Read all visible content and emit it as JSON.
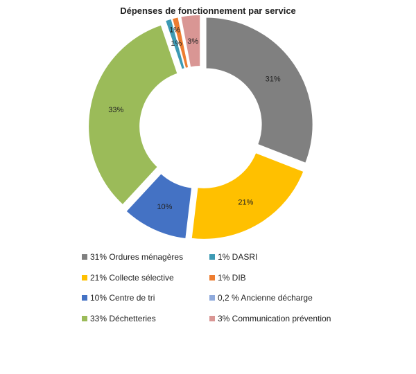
{
  "chart_data": {
    "type": "pie",
    "title": "Dépenses de fonctionnement par service",
    "donut": true,
    "slices": [
      {
        "label": "31%",
        "value": 31,
        "color": "#808080",
        "exploded": true
      },
      {
        "label": "21%",
        "value": 21,
        "color": "#FFC000",
        "exploded": true
      },
      {
        "label": "10%",
        "value": 10,
        "color": "#4472C4",
        "exploded": true
      },
      {
        "label": "33%",
        "value": 33,
        "color": "#9BBB59",
        "exploded": true
      },
      {
        "label": "1%",
        "value": 1,
        "color": "#3D9AB4",
        "exploded": true
      },
      {
        "label": "1%",
        "value": 1,
        "color": "#ED7D31",
        "exploded": true
      },
      {
        "label": "",
        "value": 0.2,
        "color": "#8FAADC",
        "exploded": true
      },
      {
        "label": "3%",
        "value": 3,
        "color": "#D99694",
        "exploded": true
      }
    ],
    "legend_position": "bottom",
    "legend": {
      "left": [
        {
          "text": "31% Ordures ménagères",
          "color": "#808080"
        },
        {
          "text": "21% Collecte sélective",
          "color": "#FFC000"
        },
        {
          "text": "10% Centre de tri",
          "color": "#4472C4"
        },
        {
          "text": "33% Déchetteries",
          "color": "#9BBB59"
        }
      ],
      "right": [
        {
          "text": "1% DASRI",
          "color": "#3D9AB4"
        },
        {
          "text": "1% DIB",
          "color": "#ED7D31"
        },
        {
          "text": "0,2 % Ancienne décharge",
          "color": "#8FAADC"
        },
        {
          "text": "3% Communication prévention",
          "color": "#D99694"
        }
      ]
    }
  }
}
